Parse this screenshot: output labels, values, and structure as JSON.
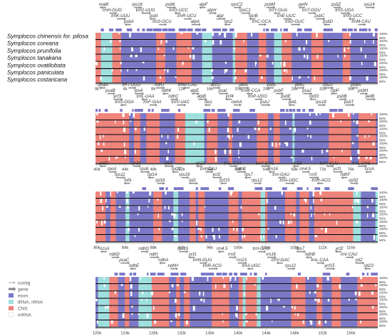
{
  "species": [
    "Symplocos chinensis for. pilosa",
    "Symplocos coreana",
    "Symplocos prunifolia",
    "Symplocos tanakana",
    "Symplocos ovatilobata",
    "Symplocos paniculata",
    "Symplocos costaricana"
  ],
  "colors": {
    "exon": "#7c78c8",
    "trna": "#9ee0de",
    "cns": "#f0837a",
    "mrna": "#ffffff",
    "track": "#7c78c8",
    "contig": "#aaaaaa",
    "gene_arrow": "#888888",
    "separator": "#000000"
  },
  "legend": [
    {
      "key": "contig",
      "label": "contig",
      "icon": "line-arrow-icon"
    },
    {
      "key": "gene",
      "label": "gene",
      "icon": "block-arrow-icon"
    },
    {
      "key": "exon",
      "label": "exon",
      "icon": "square-icon"
    },
    {
      "key": "trna",
      "label": "tRNA, rRNA",
      "icon": "square-icon"
    },
    {
      "key": "cns",
      "label": "CNS",
      "icon": "square-icon"
    },
    {
      "key": "mrna",
      "label": "mRNA",
      "icon": "square-icon"
    }
  ],
  "identity_axis": {
    "top": "100%",
    "bottom": "50%"
  },
  "panels": [
    {
      "ticks": [
        "0k",
        "4k",
        "8k",
        "12k",
        "16k",
        "20k",
        "24k",
        "28k",
        "32k",
        "36k"
      ],
      "genes": [
        "matK",
        "trnH-GUG",
        "trnK-UUU",
        "psbA",
        "rps16",
        "trnQ-UUG",
        "psbI",
        "trnS-GCU",
        "psbK",
        "trnG-UCC",
        "trnR-UCU",
        "atpA",
        "atpF",
        "atpH",
        "atpI",
        "rps2",
        "rpoC2",
        "rpoC1",
        "rpoB",
        "trnC-GCA",
        "psbM",
        "trnY-GUA",
        "trnE-UUC",
        "trnD-GUC",
        "petN",
        "trnT-GGU",
        "psbC",
        "psbD",
        "psbZ",
        "trnS-UGA",
        "trnG-UCC",
        "trnM-CAU",
        "rps14"
      ]
    },
    {
      "ticks": [
        "40k",
        "44k",
        "48k",
        "52k",
        "56k",
        "60k",
        "64k",
        "68k",
        "72k",
        "76k"
      ],
      "genes": [
        "psaA",
        "psaB",
        "ycf3",
        "trnS-GGA",
        "trnT-UGU",
        "rps4",
        "trnL-UAA",
        "trnF-GAA",
        "ndhJ",
        "ndhK",
        "ndhC",
        "trnV-UAC",
        "trnM-CAU",
        "atpE",
        "atpB",
        "rbcL",
        "accD",
        "psaI",
        "ycf4",
        "cemA",
        "petA",
        "trnW-CCA",
        "trnP-UGG",
        "psbJ",
        "psbL",
        "psbF",
        "psbE",
        "petL",
        "petG",
        "psaJ",
        "rpl33",
        "rps18",
        "rpl20",
        "clpP",
        "psbB",
        "psbT",
        "psbN",
        "psbH",
        "petB"
      ]
    },
    {
      "ticks": [
        "80k",
        "84k",
        "88k",
        "92k",
        "96k",
        "100k",
        "104k",
        "108k",
        "112k",
        "116k"
      ],
      "genes": [
        "petD",
        "rpoA",
        "rps11",
        "infA",
        "rpl36",
        "rps8",
        "rpl14",
        "rpl16",
        "rps3",
        "rpl22",
        "rps19",
        "rpl2",
        "rpl23",
        "trnI-CAU",
        "ycf2",
        "ycf15",
        "trnL-CAA",
        "ndhB",
        "rps7",
        "rps12",
        "trnV-GAC",
        "rrn16",
        "trnI-GAU",
        "trnA-UGC",
        "rrn23",
        "rrn4.5",
        "rrn5",
        "trnR-ACG",
        "trnN-GUU",
        "ycf1",
        "ndhF",
        "rpl32",
        "trnL-UAG",
        "ccsA"
      ]
    },
    {
      "ticks": [
        "120k",
        "124k",
        "128k",
        "132k",
        "136k",
        "140k",
        "144k",
        "148k",
        "152k",
        "156k"
      ],
      "genes": [
        "ccsA",
        "ndhD",
        "psaC",
        "ndhE",
        "ndhG",
        "ndhI",
        "ndhA",
        "ndhH",
        "rps15",
        "ycf1",
        "trnN-GUU",
        "trnR-ACG",
        "rrn4.5",
        "rrn5",
        "rrn23",
        "trnA-UGC",
        "trnI-GAU",
        "rrn16",
        "trnV-GAC",
        "rps12",
        "rps7",
        "ndhB",
        "trnL-CAA",
        "ycf15",
        "ycf2",
        "trnI-CAU",
        "rpl2",
        "rpl23"
      ]
    }
  ]
}
